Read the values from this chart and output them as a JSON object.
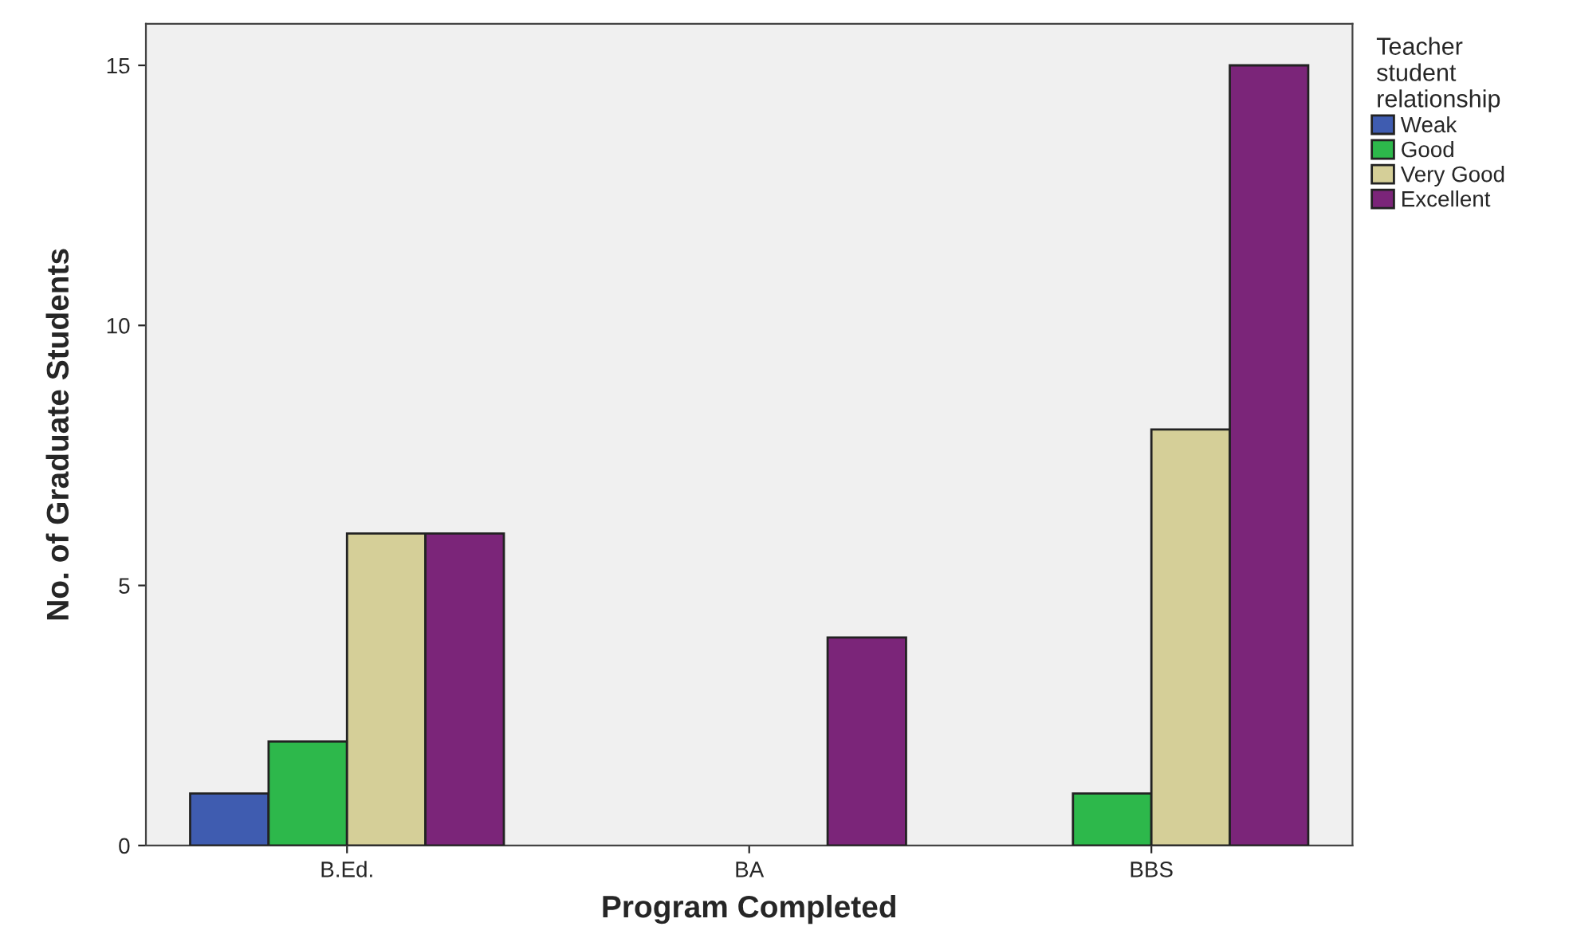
{
  "chart_data": {
    "type": "bar",
    "xlabel": "Program Completed",
    "ylabel": "No. of Graduate Students",
    "legend_title": "Teacher\nstudent\nrelationship",
    "categories": [
      "B.Ed.",
      "BA",
      "BBS"
    ],
    "series": [
      {
        "name": "Weak",
        "color": "#3f5cb0",
        "values": [
          1,
          null,
          null
        ]
      },
      {
        "name": "Good",
        "color": "#2db84b",
        "values": [
          2,
          null,
          1
        ]
      },
      {
        "name": "Very Good",
        "color": "#d5cf98",
        "values": [
          6,
          null,
          8
        ]
      },
      {
        "name": "Excellent",
        "color": "#7b2579",
        "values": [
          6,
          4,
          15
        ]
      }
    ],
    "ylim": [
      0,
      15.8
    ],
    "yticks": [
      0,
      5,
      10,
      15
    ],
    "grid": false,
    "legend": "right"
  }
}
